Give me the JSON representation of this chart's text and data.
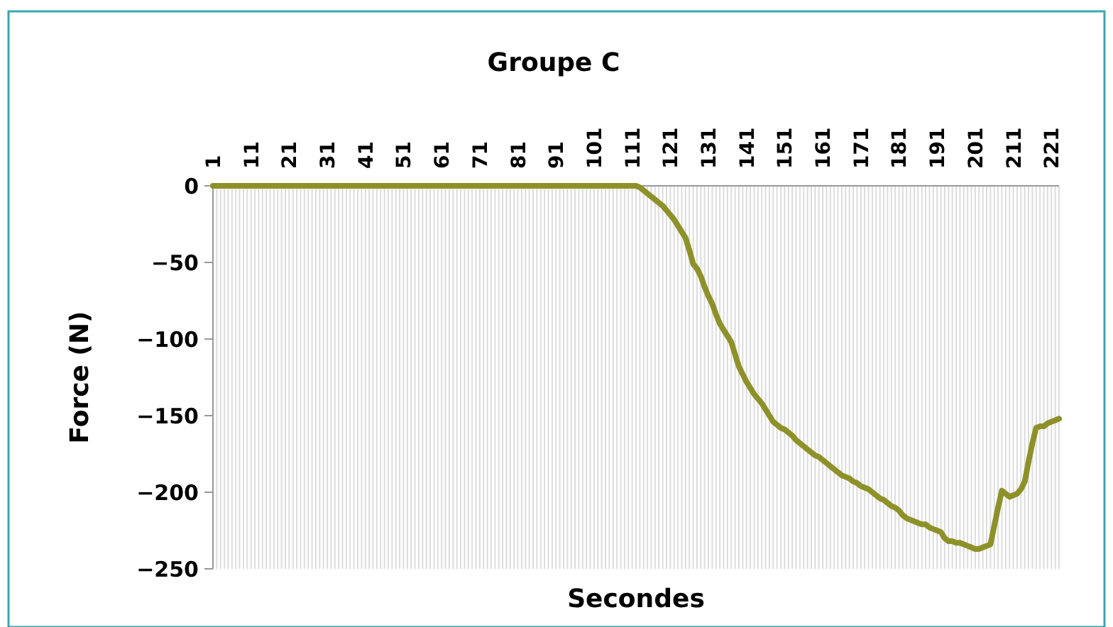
{
  "chart_data": {
    "type": "line",
    "title": "Groupe C",
    "xlabel": "Secondes",
    "ylabel": "Force (N)",
    "categories": [
      "1",
      null,
      null,
      null,
      null,
      null,
      null,
      null,
      null,
      null,
      "11",
      null,
      null,
      null,
      null,
      null,
      null,
      null,
      null,
      null,
      "21",
      null,
      null,
      null,
      null,
      null,
      null,
      null,
      null,
      null,
      "31",
      null,
      null,
      null,
      null,
      null,
      null,
      null,
      null,
      null,
      "41",
      null,
      null,
      null,
      null,
      null,
      null,
      null,
      null,
      null,
      "51",
      null,
      null,
      null,
      null,
      null,
      null,
      null,
      null,
      null,
      "61",
      null,
      null,
      null,
      null,
      null,
      null,
      null,
      null,
      null,
      "71",
      null,
      null,
      null,
      null,
      null,
      null,
      null,
      null,
      null,
      "81",
      null,
      null,
      null,
      null,
      null,
      null,
      null,
      null,
      null,
      "91",
      null,
      null,
      null,
      null,
      null,
      null,
      null,
      null,
      null,
      "101",
      null,
      null,
      null,
      null,
      null,
      null,
      null,
      null,
      null,
      "111",
      null,
      null,
      null,
      null,
      null,
      null,
      null,
      null,
      null,
      "121",
      null,
      null,
      null,
      null,
      null,
      null,
      null,
      null,
      null,
      "131",
      null,
      null,
      null,
      null,
      null,
      null,
      null,
      null,
      null,
      "141",
      null,
      null,
      null,
      null,
      null,
      null,
      null,
      null,
      null,
      "151",
      null,
      null,
      null,
      null,
      null,
      null,
      null,
      null,
      null,
      "161",
      null,
      null,
      null,
      null,
      null,
      null,
      null,
      null,
      null,
      "171",
      null,
      null,
      null,
      null,
      null,
      null,
      null,
      null,
      null,
      "181",
      null,
      null,
      null,
      null,
      null,
      null,
      null,
      null,
      null,
      "191",
      null,
      null,
      null,
      null,
      null,
      null,
      null,
      null,
      null,
      "201",
      null,
      null,
      null,
      null,
      null,
      null,
      null,
      null,
      null,
      "211",
      null,
      null,
      null,
      null,
      null,
      null,
      null,
      null,
      null,
      "221",
      null,
      null
    ],
    "series": [
      {
        "color": "#8e9128",
        "values": [
          0,
          0,
          0,
          0,
          0,
          0,
          0,
          0,
          0,
          0,
          0,
          0,
          0,
          0,
          0,
          0,
          0,
          0,
          0,
          0,
          0,
          0,
          0,
          0,
          0,
          0,
          0,
          0,
          0,
          0,
          0,
          0,
          0,
          0,
          0,
          0,
          0,
          0,
          0,
          0,
          0,
          0,
          0,
          0,
          0,
          0,
          0,
          0,
          0,
          0,
          0,
          0,
          0,
          0,
          0,
          0,
          0,
          0,
          0,
          0,
          0,
          0,
          0,
          0,
          0,
          0,
          0,
          0,
          0,
          0,
          0,
          0,
          0,
          0,
          0,
          0,
          0,
          0,
          0,
          0,
          0,
          0,
          0,
          0,
          0,
          0,
          0,
          0,
          0,
          0,
          0,
          0,
          0,
          0,
          0,
          0,
          0,
          0,
          0,
          0,
          0,
          0,
          0,
          0,
          0,
          0,
          0,
          0,
          0,
          0,
          0,
          0,
          -1,
          -3,
          -5,
          -7,
          -9,
          -11,
          -13,
          -16,
          -19,
          -22,
          -26,
          -30,
          -34,
          -42,
          -51,
          -54,
          -59,
          -66,
          -72,
          -77,
          -84,
          -90,
          -94,
          -98,
          -102,
          -110,
          -118,
          -123,
          -128,
          -132,
          -136,
          -139,
          -142,
          -146,
          -150,
          -154,
          -156,
          -158,
          -159,
          -161,
          -163,
          -166,
          -168,
          -170,
          -172,
          -174,
          -176,
          -177,
          -179,
          -181,
          -183,
          -185,
          -187,
          -189,
          -190,
          -191,
          -193,
          -194,
          -196,
          -197,
          -198,
          -200,
          -202,
          -204,
          -205,
          -207,
          -209,
          -210,
          -212,
          -215,
          -217,
          -218,
          -219,
          -220,
          -221,
          -221,
          -223,
          -224,
          -225,
          -226,
          -230,
          -232,
          -232,
          -233,
          -233,
          -234,
          -235,
          -236,
          -237,
          -237,
          -236,
          -235,
          -234,
          -222,
          -210,
          -199,
          -201,
          -203,
          -202,
          -201,
          -198,
          -193,
          -180,
          -168,
          -158,
          -157,
          -157,
          -155,
          -154,
          -153,
          -152
        ]
      }
    ],
    "ylim": [
      -250,
      0
    ],
    "yticks": [
      0,
      -50,
      -100,
      -150,
      -200,
      -250
    ],
    "grid": "x"
  }
}
